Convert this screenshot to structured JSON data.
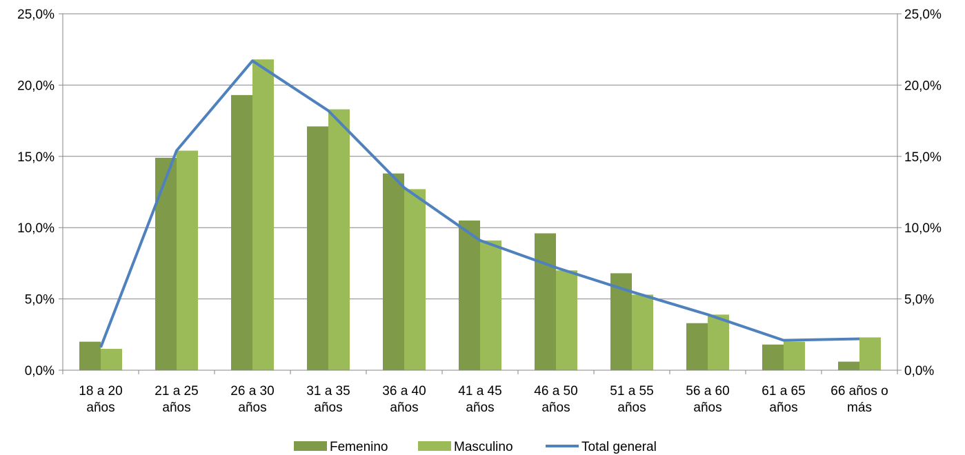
{
  "chart_data": {
    "type": "bar",
    "categories": [
      [
        "18 a  20",
        "años"
      ],
      [
        "21 a 25",
        "años"
      ],
      [
        "26 a 30",
        "años"
      ],
      [
        "31 a 35",
        "años"
      ],
      [
        "36 a 40",
        "años"
      ],
      [
        "41 a 45",
        "años"
      ],
      [
        "46 a 50",
        "años"
      ],
      [
        "51 a 55",
        "años"
      ],
      [
        "56 a 60",
        "años"
      ],
      [
        "61 a 65",
        "años"
      ],
      [
        "66 años o",
        "más"
      ]
    ],
    "series": [
      {
        "name": "Femenino",
        "kind": "bar",
        "axis": "left",
        "color": "#7F9A48",
        "values": [
          2.0,
          14.9,
          19.3,
          17.1,
          13.8,
          10.5,
          9.6,
          6.8,
          3.3,
          1.8,
          0.6
        ]
      },
      {
        "name": "Masculino",
        "kind": "bar",
        "axis": "left",
        "color": "#9BBB59",
        "values": [
          1.5,
          15.4,
          21.8,
          18.3,
          12.7,
          9.1,
          7.0,
          5.3,
          3.9,
          2.0,
          2.3
        ]
      },
      {
        "name": "Total general",
        "kind": "line",
        "axis": "right",
        "color": "#4F81BD",
        "values": [
          1.6,
          15.4,
          21.7,
          18.2,
          12.8,
          9.1,
          7.2,
          5.5,
          3.9,
          2.1,
          2.2
        ]
      }
    ],
    "ylim": [
      0,
      25
    ],
    "y_ticks": [
      "0,0%",
      "5,0%",
      "10,0%",
      "15,0%",
      "20,0%",
      "25,0%"
    ],
    "y2_ticks": [
      "0,0%",
      "5,0%",
      "10,0%",
      "15,0%",
      "20,0%",
      "25,0%"
    ],
    "grid": true,
    "legend": {
      "position": "bottom",
      "entries": [
        "Femenino",
        "Masculino",
        "Total general"
      ]
    }
  }
}
